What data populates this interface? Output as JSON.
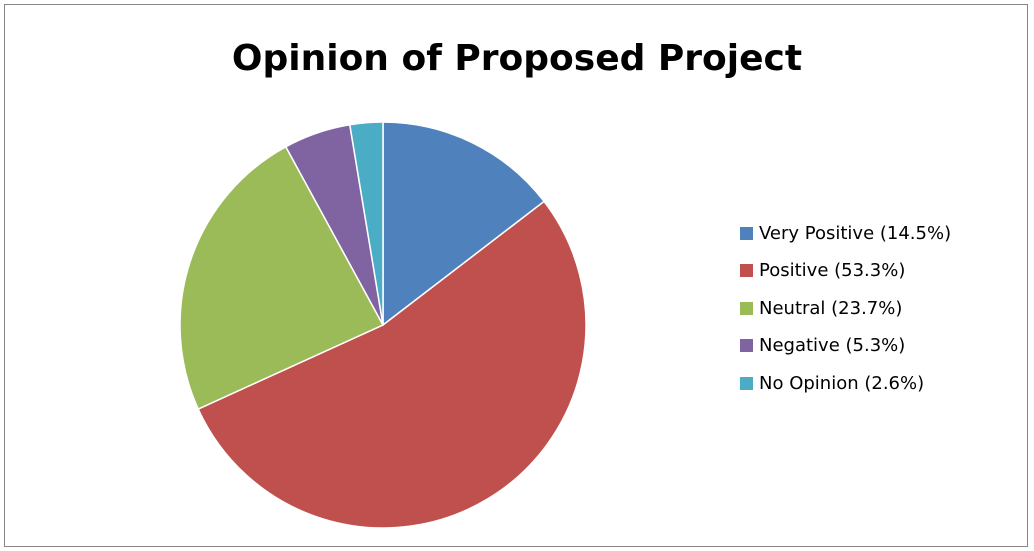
{
  "chart_data": {
    "type": "pie",
    "title": "Opinion of Proposed Project",
    "categories": [
      "Very Positive",
      "Positive",
      "Neutral",
      "Negative",
      "No Opinion"
    ],
    "values": [
      14.5,
      53.3,
      23.7,
      5.3,
      2.6
    ],
    "legend_labels": [
      "Very Positive (14.5%)",
      "Positive (53.3%)",
      "Neutral (23.7%)",
      "Negative (5.3%)",
      "No Opinion (2.6%)"
    ],
    "colors": [
      "#4f81bd",
      "#c0504d",
      "#9bbb59",
      "#8064a2",
      "#4bacc6"
    ],
    "legend_position": "right",
    "start_angle": "12 o'clock",
    "direction": "clockwise"
  }
}
